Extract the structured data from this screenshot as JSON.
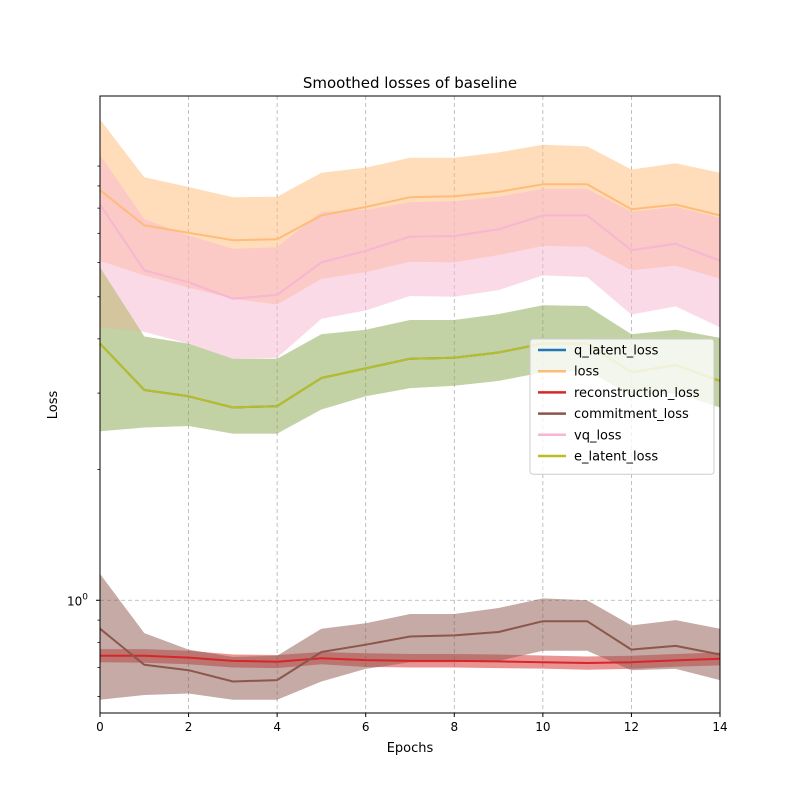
{
  "chart_data": {
    "type": "line",
    "title": "Smoothed losses of baseline",
    "xlabel": "Epochs",
    "ylabel": "Loss",
    "yscale": "log",
    "x": [
      0,
      1,
      2,
      3,
      4,
      5,
      6,
      7,
      8,
      9,
      10,
      11,
      12,
      13,
      14
    ],
    "xlim": [
      0,
      14
    ],
    "ylim": [
      0.55,
      14.5
    ],
    "xticks": [
      0,
      2,
      4,
      6,
      8,
      10,
      12,
      14
    ],
    "yticks": [
      {
        "value": 1.0,
        "label": "10^0"
      }
    ],
    "grid": true,
    "legend_position": "center-right",
    "series": [
      {
        "name": "q_latent_loss",
        "color": "#1f77b4",
        "values": [
          3.9,
          3.05,
          2.95,
          2.78,
          2.8,
          3.25,
          3.42,
          3.6,
          3.62,
          3.72,
          3.9,
          3.9,
          3.35,
          3.48,
          3.2
        ],
        "lower": [
          2.45,
          2.5,
          2.52,
          2.42,
          2.42,
          2.75,
          2.95,
          3.08,
          3.12,
          3.2,
          3.35,
          3.38,
          2.96,
          3.0,
          2.78
        ],
        "upper": [
          5.85,
          4.05,
          3.9,
          3.6,
          3.6,
          4.1,
          4.2,
          4.42,
          4.42,
          4.56,
          4.78,
          4.76,
          4.1,
          4.2,
          4.02
        ],
        "band_color": "#1f77b4",
        "band_alpha": 0.25
      },
      {
        "name": "loss",
        "color": "#ffbb78",
        "values": [
          8.8,
          7.3,
          7.02,
          6.75,
          6.78,
          7.7,
          8.05,
          8.48,
          8.52,
          8.72,
          9.08,
          9.08,
          7.95,
          8.15,
          7.7
        ],
        "lower": [
          6.05,
          5.6,
          5.25,
          4.95,
          4.8,
          5.5,
          5.7,
          6.02,
          6.0,
          6.24,
          6.55,
          6.52,
          5.75,
          5.9,
          5.5
        ],
        "upper": [
          12.8,
          9.42,
          8.95,
          8.48,
          8.5,
          9.65,
          9.92,
          10.45,
          10.45,
          10.75,
          11.2,
          11.1,
          9.82,
          10.15,
          9.65
        ],
        "band_color": "#ffbb78",
        "band_alpha": 0.5
      },
      {
        "name": "reconstruction_loss",
        "color": "#d62728",
        "values": [
          0.745,
          0.745,
          0.738,
          0.725,
          0.722,
          0.735,
          0.728,
          0.725,
          0.725,
          0.723,
          0.72,
          0.717,
          0.72,
          0.727,
          0.733
        ],
        "lower": [
          0.72,
          0.718,
          0.712,
          0.7,
          0.698,
          0.712,
          0.702,
          0.7,
          0.7,
          0.698,
          0.696,
          0.692,
          0.695,
          0.703,
          0.708
        ],
        "upper": [
          0.772,
          0.772,
          0.765,
          0.75,
          0.748,
          0.76,
          0.755,
          0.752,
          0.752,
          0.75,
          0.746,
          0.742,
          0.745,
          0.752,
          0.758
        ],
        "band_color": "#d62728",
        "band_alpha": 0.5
      },
      {
        "name": "commitment_loss",
        "color": "#8c564b",
        "values": [
          0.86,
          0.71,
          0.69,
          0.65,
          0.655,
          0.76,
          0.79,
          0.825,
          0.83,
          0.845,
          0.895,
          0.895,
          0.77,
          0.785,
          0.75
        ],
        "lower": [
          0.59,
          0.605,
          0.61,
          0.59,
          0.59,
          0.65,
          0.695,
          0.72,
          0.72,
          0.725,
          0.765,
          0.765,
          0.69,
          0.695,
          0.655
        ],
        "upper": [
          1.15,
          0.84,
          0.77,
          0.74,
          0.745,
          0.86,
          0.885,
          0.93,
          0.93,
          0.96,
          1.01,
          1.0,
          0.875,
          0.9,
          0.86
        ],
        "band_color": "#8c564b",
        "band_alpha": 0.5
      },
      {
        "name": "vq_loss",
        "color": "#f7b6d2",
        "values": [
          8.15,
          5.75,
          5.4,
          4.95,
          5.05,
          6.0,
          6.38,
          6.88,
          6.9,
          7.15,
          7.7,
          7.7,
          6.4,
          6.62,
          6.05
        ],
        "lower": [
          4.25,
          4.15,
          3.9,
          3.6,
          3.62,
          4.45,
          4.65,
          5.02,
          5.0,
          5.18,
          5.6,
          5.55,
          4.55,
          4.75,
          4.25
        ],
        "upper": [
          10.6,
          7.55,
          6.92,
          6.45,
          6.5,
          7.85,
          7.92,
          8.25,
          8.3,
          8.5,
          8.86,
          8.86,
          7.85,
          8.05,
          7.6
        ],
        "band_color": "#f7b6d2",
        "band_alpha": 0.5
      },
      {
        "name": "e_latent_loss",
        "color": "#bcbd22",
        "values": [
          3.9,
          3.05,
          2.95,
          2.78,
          2.8,
          3.25,
          3.42,
          3.6,
          3.62,
          3.72,
          3.9,
          3.9,
          3.35,
          3.48,
          3.2
        ],
        "lower": [
          2.45,
          2.5,
          2.52,
          2.42,
          2.42,
          2.75,
          2.95,
          3.08,
          3.12,
          3.2,
          3.35,
          3.38,
          2.96,
          3.0,
          2.78
        ],
        "upper": [
          5.85,
          4.05,
          3.9,
          3.6,
          3.6,
          4.1,
          4.2,
          4.42,
          4.42,
          4.56,
          4.78,
          4.76,
          4.1,
          4.2,
          4.02
        ],
        "band_color": "#bcbd22",
        "band_alpha": 0.35
      }
    ]
  }
}
